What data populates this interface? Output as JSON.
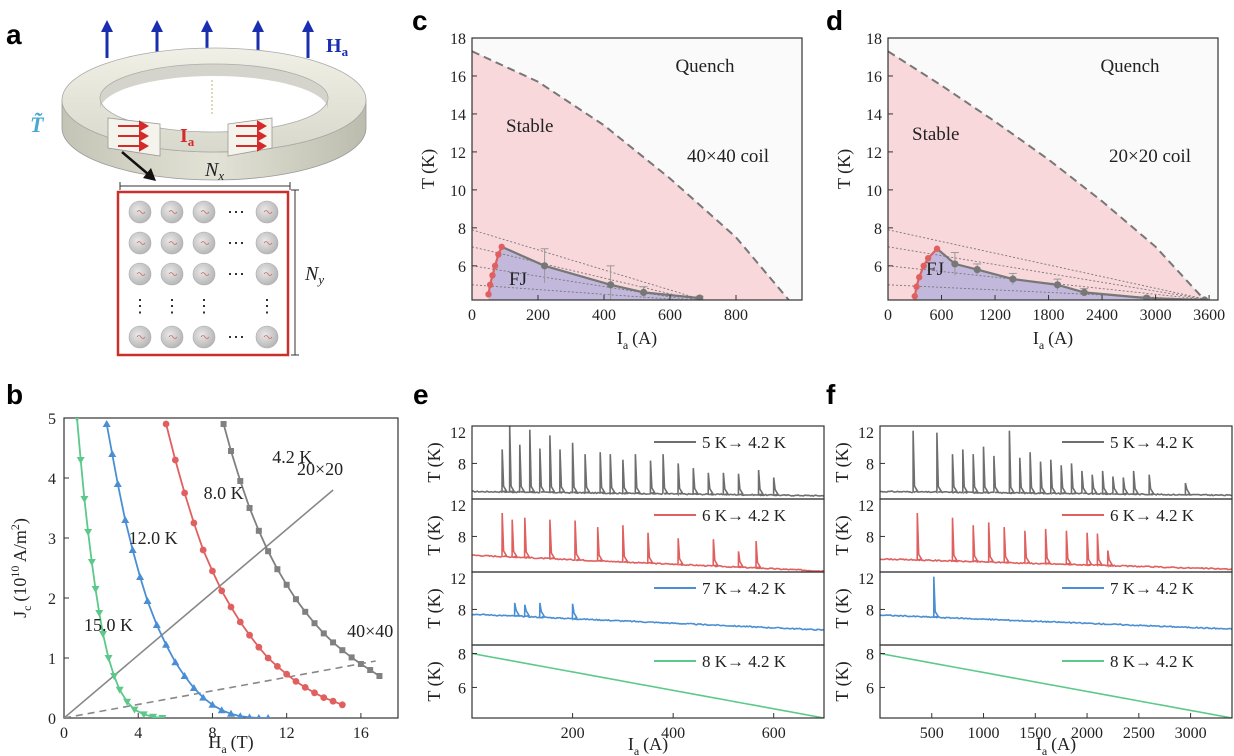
{
  "panel_letters": [
    "a",
    "b",
    "c",
    "d",
    "e",
    "f"
  ],
  "panel_a": {
    "field_label": "H",
    "field_sub": "a",
    "temp_symbol": "T̃",
    "current_label": "I",
    "current_sub": "a",
    "nx_label": "N",
    "nx_sub": "x",
    "ny_label": "N",
    "ny_sub": "y",
    "ellipsis": "⋯",
    "vdots": "⋮",
    "colors": {
      "field_arrow": "#1a2fb0",
      "current": "#d42a2a",
      "temp": "#4aa8d0",
      "box": "#c9302c"
    }
  },
  "chart_data": [
    {
      "id": "b",
      "type": "line",
      "xlabel": "H",
      "xlabel_sub": "a",
      "xlabel_unit": "(T)",
      "ylabel": "J",
      "ylabel_sub": "c",
      "ylabel_unit_pre": "(10",
      "ylabel_exp": "10",
      "ylabel_unit_post": " A/m",
      "ylabel_exp2": "2",
      "ylabel_close": ")",
      "xlim": [
        0,
        18
      ],
      "ylim": [
        0,
        5
      ],
      "xticks": [
        0,
        4,
        8,
        12,
        16
      ],
      "yticks": [
        0,
        1,
        2,
        3,
        4,
        5
      ],
      "series": [
        {
          "name": "15.0 K",
          "color": "#5cc98a",
          "marker": "triangle-down",
          "x": [
            0.7,
            0.9,
            1.1,
            1.3,
            1.5,
            1.7,
            1.9,
            2.1,
            2.4,
            2.7,
            3.0,
            3.4,
            3.8,
            4.3,
            4.8,
            5.3
          ],
          "y": [
            5.0,
            4.3,
            3.65,
            3.1,
            2.6,
            2.15,
            1.75,
            1.4,
            1.0,
            0.7,
            0.47,
            0.27,
            0.14,
            0.06,
            0.02,
            0.0
          ]
        },
        {
          "name": "12.0 K",
          "color": "#4a8fd4",
          "marker": "triangle-up",
          "x": [
            2.3,
            2.6,
            2.9,
            3.3,
            3.7,
            4.1,
            4.5,
            5.0,
            5.5,
            6.0,
            6.5,
            7.0,
            7.5,
            8.0,
            8.5,
            9.0,
            9.5,
            10.0,
            10.5,
            11.0
          ],
          "y": [
            4.9,
            4.4,
            3.9,
            3.3,
            2.8,
            2.35,
            1.95,
            1.55,
            1.22,
            0.93,
            0.7,
            0.5,
            0.34,
            0.22,
            0.13,
            0.07,
            0.03,
            0.01,
            0.0,
            0.0
          ]
        },
        {
          "name": "8.0 K",
          "color": "#e06060",
          "marker": "circle",
          "x": [
            5.5,
            6.0,
            6.5,
            7.0,
            7.5,
            8.0,
            8.5,
            9.0,
            9.5,
            10.0,
            10.5,
            11.0,
            11.5,
            12.0,
            12.5,
            13.0,
            13.5,
            14.0,
            14.5,
            15.0
          ],
          "y": [
            4.9,
            4.3,
            3.75,
            3.25,
            2.8,
            2.45,
            2.12,
            1.85,
            1.6,
            1.38,
            1.18,
            1.0,
            0.86,
            0.73,
            0.61,
            0.51,
            0.42,
            0.34,
            0.28,
            0.22
          ]
        },
        {
          "name": "4.2 K",
          "color": "#808080",
          "marker": "square",
          "x": [
            8.6,
            9.0,
            9.5,
            10.0,
            10.5,
            11.0,
            11.5,
            12.0,
            12.5,
            13.0,
            13.5,
            14.0,
            14.5,
            15.0,
            15.5,
            16.0,
            16.5,
            17.0
          ],
          "y": [
            4.9,
            4.45,
            3.95,
            3.5,
            3.12,
            2.78,
            2.48,
            2.22,
            1.98,
            1.77,
            1.58,
            1.41,
            1.26,
            1.13,
            1.01,
            0.9,
            0.8,
            0.7
          ]
        }
      ],
      "load_lines": [
        {
          "name": "20×20",
          "x": [
            0,
            14.5
          ],
          "y": [
            0,
            3.8
          ],
          "style": "solid"
        },
        {
          "name": "40×40",
          "x": [
            0,
            16.8
          ],
          "y": [
            0,
            0.95
          ],
          "style": "dashed"
        }
      ]
    },
    {
      "id": "c",
      "type": "area",
      "xlabel": "I",
      "xlabel_sub": "a",
      "xlabel_unit": "(A)",
      "ylabel": "T (K)",
      "xlim": [
        0,
        1000
      ],
      "ylim": [
        4.2,
        18
      ],
      "xticks": [
        0,
        200,
        400,
        600,
        800
      ],
      "yticks": [
        6,
        8,
        10,
        12,
        14,
        16,
        18
      ],
      "regions": {
        "quench": "Quench",
        "stable": "Stable",
        "fj": "FJ",
        "coil": "40×40 coil"
      },
      "quench_boundary": {
        "x": [
          0,
          200,
          400,
          600,
          800,
          960
        ],
        "y": [
          17.3,
          15.7,
          13.4,
          10.6,
          7.5,
          4.2
        ]
      },
      "fj_boundary": {
        "x": [
          50,
          55,
          62,
          70,
          80,
          90,
          220,
          420,
          520,
          690
        ],
        "y": [
          4.5,
          5.0,
          5.5,
          6.0,
          6.6,
          7.0,
          6.0,
          5.0,
          4.6,
          4.3
        ]
      },
      "fj_error": [
        0,
        0,
        0,
        0,
        0,
        0,
        0.9,
        1.0,
        0.3,
        0.1
      ],
      "guide_lines": [
        {
          "x": [
            0,
            700
          ],
          "y": [
            7.9,
            4.2
          ]
        },
        {
          "x": [
            0,
            680
          ],
          "y": [
            7.0,
            4.2
          ]
        },
        {
          "x": [
            0,
            660
          ],
          "y": [
            6.0,
            4.2
          ]
        },
        {
          "x": [
            0,
            640
          ],
          "y": [
            5.0,
            4.2
          ]
        }
      ]
    },
    {
      "id": "d",
      "type": "area",
      "xlabel": "I",
      "xlabel_sub": "a",
      "xlabel_unit": "(A)",
      "ylabel": "T (K)",
      "xlim": [
        0,
        3700
      ],
      "ylim": [
        4.2,
        18
      ],
      "xticks": [
        0,
        600,
        1200,
        1800,
        2400,
        3000,
        3600
      ],
      "yticks": [
        6,
        8,
        10,
        12,
        14,
        16,
        18
      ],
      "regions": {
        "quench": "Quench",
        "stable": "Stable",
        "fj": "FJ",
        "coil": "20×20 coil"
      },
      "quench_boundary": {
        "x": [
          0,
          600,
          1200,
          1800,
          2400,
          3000,
          3550
        ],
        "y": [
          17.3,
          15.5,
          13.6,
          11.6,
          9.4,
          7.0,
          4.2
        ]
      },
      "fj_boundary": {
        "x": [
          300,
          320,
          350,
          400,
          450,
          550,
          750,
          1000,
          1400,
          1900,
          2200,
          2900,
          3550
        ],
        "y": [
          4.4,
          4.9,
          5.4,
          6.0,
          6.4,
          6.9,
          6.1,
          5.8,
          5.3,
          5.0,
          4.6,
          4.3,
          4.2
        ]
      },
      "fj_error": [
        0,
        0,
        0,
        0,
        0,
        0,
        0.6,
        0.3,
        0.3,
        0.3,
        0.2,
        0.1,
        0.0
      ],
      "guide_lines": [
        {
          "x": [
            0,
            3600
          ],
          "y": [
            7.9,
            4.2
          ]
        },
        {
          "x": [
            0,
            3600
          ],
          "y": [
            7.0,
            4.2
          ]
        },
        {
          "x": [
            0,
            3600
          ],
          "y": [
            6.0,
            4.2
          ]
        },
        {
          "x": [
            0,
            3600
          ],
          "y": [
            5.0,
            4.2
          ]
        }
      ]
    },
    {
      "id": "e",
      "type": "line",
      "xlabel": "I",
      "xlabel_sub": "a",
      "xlabel_unit": "(A)",
      "ylabel": "T (K)",
      "xlim": [
        0,
        700
      ],
      "xticks": [
        200,
        400,
        600
      ],
      "subplots": [
        {
          "name": "5 K→ 4.2 K",
          "color": "#6e6e6e",
          "ylim": [
            4.2,
            12
          ],
          "yticks": [
            8,
            12
          ],
          "base": [
            5.0,
            4.55
          ],
          "spikes": [
            [
              60,
              9.5
            ],
            [
              75,
              12.0
            ],
            [
              95,
              10.0
            ],
            [
              115,
              11.6
            ],
            [
              135,
              9.6
            ],
            [
              155,
              11.0
            ],
            [
              175,
              9.5
            ],
            [
              200,
              10.2
            ],
            [
              225,
              9.0
            ],
            [
              255,
              9.2
            ],
            [
              275,
              9.0
            ],
            [
              300,
              8.4
            ],
            [
              325,
              9.0
            ],
            [
              355,
              8.3
            ],
            [
              380,
              9.0
            ],
            [
              410,
              8.0
            ],
            [
              440,
              7.5
            ],
            [
              470,
              7.0
            ],
            [
              500,
              7.0
            ],
            [
              530,
              6.9
            ],
            [
              570,
              7.3
            ],
            [
              600,
              6.5
            ]
          ]
        },
        {
          "name": "6 K→ 4.2 K",
          "color": "#e06060",
          "ylim": [
            4.2,
            12
          ],
          "yticks": [
            8,
            12
          ],
          "base": [
            6.0,
            4.3
          ],
          "spikes": [
            [
              60,
              10.5
            ],
            [
              80,
              9.8
            ],
            [
              105,
              10.0
            ],
            [
              155,
              9.8
            ],
            [
              205,
              9.7
            ],
            [
              250,
              9.0
            ],
            [
              300,
              9.2
            ],
            [
              350,
              8.4
            ],
            [
              410,
              7.8
            ],
            [
              480,
              7.7
            ],
            [
              530,
              6.4
            ],
            [
              565,
              7.5
            ]
          ]
        },
        {
          "name": "7 K→ 4.2 K",
          "color": "#4a8fd4",
          "ylim": [
            4.2,
            12
          ],
          "yticks": [
            8,
            12
          ],
          "base": [
            7.5,
            5.8
          ],
          "spikes": [
            [
              85,
              8.7
            ],
            [
              105,
              8.5
            ],
            [
              135,
              8.7
            ],
            [
              200,
              8.6
            ]
          ]
        },
        {
          "name": "8 K→ 4.2 K",
          "color": "#5cc98a",
          "ylim": [
            4.2,
            8.5
          ],
          "yticks": [
            6,
            8
          ],
          "base": [
            8.0,
            4.2
          ],
          "spikes": []
        }
      ]
    },
    {
      "id": "f",
      "type": "line",
      "xlabel": "I",
      "xlabel_sub": "a",
      "xlabel_unit": "(A)",
      "ylabel": "T (K)",
      "xlim": [
        0,
        3400
      ],
      "xticks": [
        500,
        1000,
        1500,
        2000,
        2500,
        3000
      ],
      "subplots": [
        {
          "name": "5 K→ 4.2 K",
          "color": "#6e6e6e",
          "ylim": [
            4.2,
            12
          ],
          "yticks": [
            8,
            12
          ],
          "base": [
            5.0,
            4.6
          ],
          "spikes": [
            [
              320,
              11.5
            ],
            [
              550,
              11.3
            ],
            [
              700,
              9.0
            ],
            [
              800,
              9.5
            ],
            [
              900,
              9.0
            ],
            [
              1000,
              9.8
            ],
            [
              1100,
              8.8
            ],
            [
              1250,
              11.5
            ],
            [
              1350,
              8.6
            ],
            [
              1450,
              9.2
            ],
            [
              1550,
              8.2
            ],
            [
              1650,
              8.4
            ],
            [
              1750,
              7.8
            ],
            [
              1850,
              8.0
            ],
            [
              1950,
              7.2
            ],
            [
              2050,
              6.8
            ],
            [
              2150,
              7.2
            ],
            [
              2250,
              6.6
            ],
            [
              2350,
              6.5
            ],
            [
              2450,
              7.2
            ],
            [
              2600,
              6.8
            ],
            [
              2950,
              5.9
            ]
          ]
        },
        {
          "name": "6 K→ 4.2 K",
          "color": "#e06060",
          "ylim": [
            4.2,
            12
          ],
          "yticks": [
            8,
            12
          ],
          "base": [
            5.6,
            4.5
          ],
          "spikes": [
            [
              360,
              10.5
            ],
            [
              700,
              10.0
            ],
            [
              900,
              9.2
            ],
            [
              1050,
              9.5
            ],
            [
              1200,
              9.0
            ],
            [
              1400,
              8.6
            ],
            [
              1600,
              8.8
            ],
            [
              1800,
              8.6
            ],
            [
              2000,
              8.4
            ],
            [
              2100,
              8.3
            ],
            [
              2200,
              6.5
            ]
          ]
        },
        {
          "name": "7 K→ 4.2 K",
          "color": "#4a8fd4",
          "ylim": [
            4.2,
            12
          ],
          "yticks": [
            8,
            12
          ],
          "base": [
            7.4,
            5.9
          ],
          "spikes": [
            [
              520,
              11.5
            ]
          ]
        },
        {
          "name": "8 K→ 4.2 K",
          "color": "#5cc98a",
          "ylim": [
            4.2,
            8.5
          ],
          "yticks": [
            6,
            8
          ],
          "base": [
            8.0,
            4.2
          ],
          "spikes": []
        }
      ]
    }
  ]
}
